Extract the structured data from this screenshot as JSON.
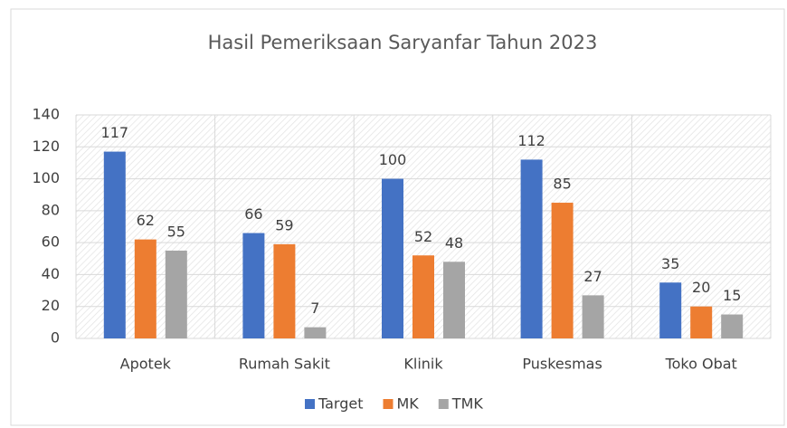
{
  "chart_data": {
    "type": "bar",
    "title": "Hasil Pemeriksaan Saryanfar Tahun 2023",
    "categories": [
      "Apotek",
      "Rumah Sakit",
      "Klinik",
      "Puskesmas",
      "Toko Obat"
    ],
    "series": [
      {
        "name": "Target",
        "color": "#4472c4",
        "values": [
          117,
          66,
          100,
          112,
          35
        ]
      },
      {
        "name": "MK",
        "color": "#ed7d31",
        "values": [
          62,
          59,
          52,
          85,
          20
        ]
      },
      {
        "name": "TMK",
        "color": "#a5a5a5",
        "values": [
          55,
          7,
          48,
          27,
          15
        ]
      }
    ],
    "ylim": [
      0,
      140
    ],
    "yticks": [
      0,
      20,
      40,
      60,
      80,
      100,
      120,
      140
    ],
    "grid": true,
    "legend": "bottom"
  }
}
